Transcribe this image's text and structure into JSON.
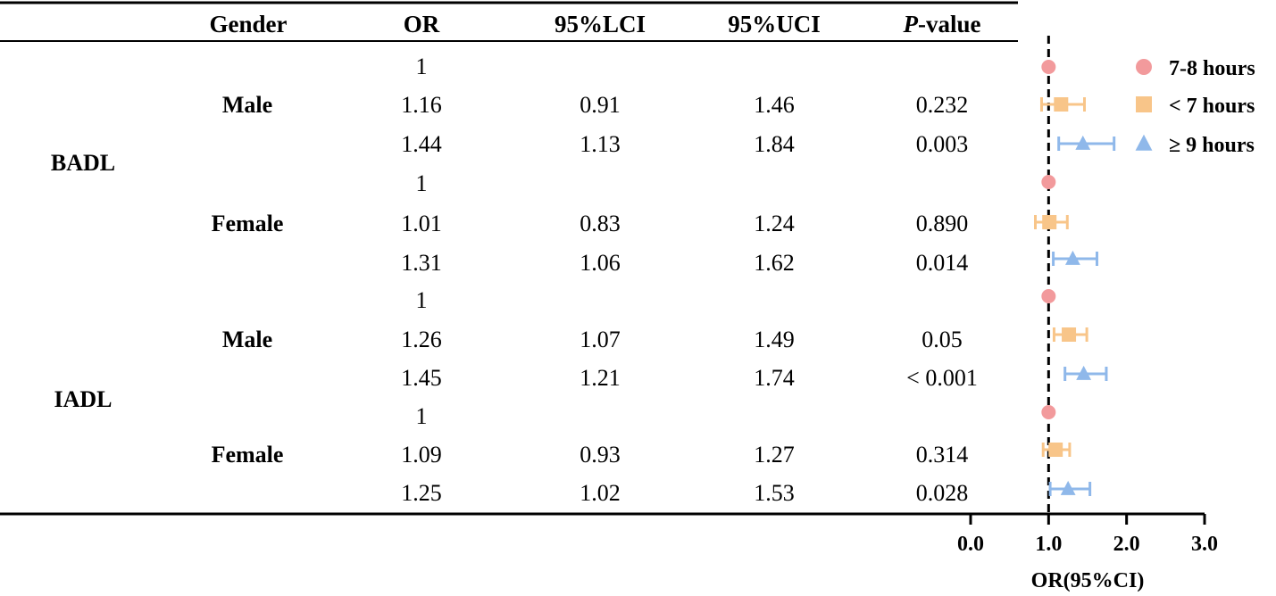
{
  "table": {
    "headers": {
      "gender": "Gender",
      "or": "OR",
      "lci": "95%LCI",
      "uci": "95%UCI",
      "p_prefix": "P",
      "p_suffix": "-value"
    },
    "groups": [
      {
        "outcome": "BADL",
        "subgroups": [
          {
            "gender": "Male",
            "rows": [
              {
                "or": "1",
                "lci": "",
                "uci": "",
                "p": ""
              },
              {
                "or": "1.16",
                "lci": "0.91",
                "uci": "1.46",
                "p": "0.232"
              },
              {
                "or": "1.44",
                "lci": "1.13",
                "uci": "1.84",
                "p": "0.003"
              }
            ]
          },
          {
            "gender": "Female",
            "rows": [
              {
                "or": "1",
                "lci": "",
                "uci": "",
                "p": ""
              },
              {
                "or": "1.01",
                "lci": "0.83",
                "uci": "1.24",
                "p": "0.890"
              },
              {
                "or": "1.31",
                "lci": "1.06",
                "uci": "1.62",
                "p": "0.014"
              }
            ]
          }
        ]
      },
      {
        "outcome": "IADL",
        "subgroups": [
          {
            "gender": "Male",
            "rows": [
              {
                "or": "1",
                "lci": "",
                "uci": "",
                "p": ""
              },
              {
                "or": "1.26",
                "lci": "1.07",
                "uci": "1.49",
                "p": "0.05"
              },
              {
                "or": "1.45",
                "lci": "1.21",
                "uci": "1.74",
                "p": "< 0.001"
              }
            ]
          },
          {
            "gender": "Female",
            "rows": [
              {
                "or": "1",
                "lci": "",
                "uci": "",
                "p": ""
              },
              {
                "or": "1.09",
                "lci": "0.93",
                "uci": "1.27",
                "p": "0.314"
              },
              {
                "or": "1.25",
                "lci": "1.02",
                "uci": "1.53",
                "p": "0.028"
              }
            ]
          }
        ]
      }
    ]
  },
  "chart_data": {
    "type": "scatter",
    "subtype": "forest-plot",
    "xlabel": "OR(95%CI)",
    "xlim": [
      0,
      3
    ],
    "xticks": [
      0,
      1,
      2,
      3
    ],
    "xtick_labels": [
      "0.0",
      "1.0",
      "2.0",
      "3.0"
    ],
    "reference_line": 1,
    "grid": false,
    "legend_position": "top-right",
    "series": [
      {
        "name": "7-8 hours",
        "marker": "circle",
        "color": "#f29a9c",
        "points": [
          {
            "row": 0,
            "or": 1
          },
          {
            "row": 3,
            "or": 1
          },
          {
            "row": 6,
            "or": 1
          },
          {
            "row": 9,
            "or": 1
          }
        ]
      },
      {
        "name": "< 7 hours",
        "marker": "square",
        "color": "#f8c589",
        "points": [
          {
            "row": 1,
            "or": 1.16,
            "lci": 0.91,
            "uci": 1.46
          },
          {
            "row": 4,
            "or": 1.01,
            "lci": 0.83,
            "uci": 1.24
          },
          {
            "row": 7,
            "or": 1.26,
            "lci": 1.07,
            "uci": 1.49
          },
          {
            "row": 10,
            "or": 1.09,
            "lci": 0.93,
            "uci": 1.27
          }
        ]
      },
      {
        "name": "≥ 9 hours",
        "marker": "triangle",
        "color": "#8fb8ea",
        "points": [
          {
            "row": 2,
            "or": 1.44,
            "lci": 1.13,
            "uci": 1.84
          },
          {
            "row": 5,
            "or": 1.31,
            "lci": 1.06,
            "uci": 1.62
          },
          {
            "row": 8,
            "or": 1.45,
            "lci": 1.21,
            "uci": 1.74
          },
          {
            "row": 11,
            "or": 1.25,
            "lci": 1.02,
            "uci": 1.53
          }
        ]
      }
    ]
  }
}
